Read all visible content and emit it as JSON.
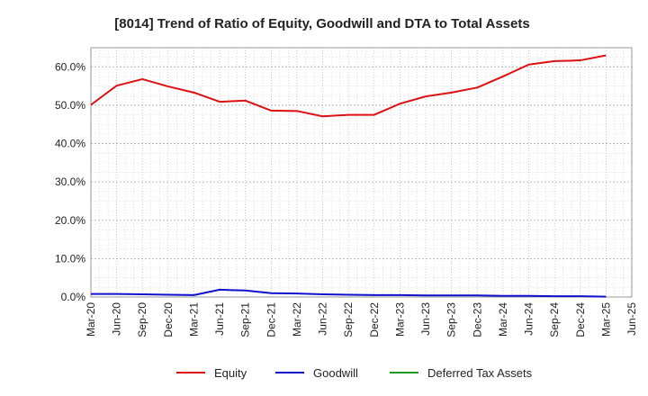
{
  "chart_data": {
    "type": "line",
    "title": "[8014]  Trend of Ratio of Equity, Goodwill and DTA to Total Assets",
    "xlabel": "",
    "ylabel": "",
    "ylim": [
      0,
      65
    ],
    "yticks": [
      0,
      10,
      20,
      30,
      40,
      50,
      60
    ],
    "ytick_labels": [
      "0.0%",
      "10.0%",
      "20.0%",
      "30.0%",
      "40.0%",
      "50.0%",
      "60.0%"
    ],
    "x_labels": [
      "Mar-20",
      "Jun-20",
      "Sep-20",
      "Dec-20",
      "Mar-21",
      "Jun-21",
      "Sep-21",
      "Dec-21",
      "Mar-22",
      "Jun-22",
      "Sep-22",
      "Dec-22",
      "Mar-23",
      "Jun-23",
      "Sep-23",
      "Dec-23",
      "Mar-24",
      "Jun-24",
      "Sep-24",
      "Dec-24",
      "Mar-25",
      "Jun-25"
    ],
    "grid": true,
    "legend_position": "bottom",
    "series": [
      {
        "name": "Equity",
        "color": "#dd1111",
        "values": [
          50.1,
          55.1,
          56.8,
          54.9,
          53.3,
          50.9,
          51.2,
          48.6,
          48.5,
          47.1,
          47.5,
          47.5,
          50.4,
          52.3,
          53.3,
          54.6,
          57.5,
          60.6,
          61.5,
          61.7,
          63.0,
          null
        ]
      },
      {
        "name": "Goodwill",
        "color": "#1111cc",
        "values": [
          0.8,
          0.8,
          0.7,
          0.6,
          0.5,
          1.9,
          1.7,
          1.0,
          0.9,
          0.7,
          0.6,
          0.5,
          0.5,
          0.4,
          0.4,
          0.4,
          0.3,
          0.3,
          0.2,
          0.2,
          0.1,
          null
        ]
      },
      {
        "name": "Deferred Tax Assets",
        "color": "#229922",
        "values": []
      }
    ]
  }
}
